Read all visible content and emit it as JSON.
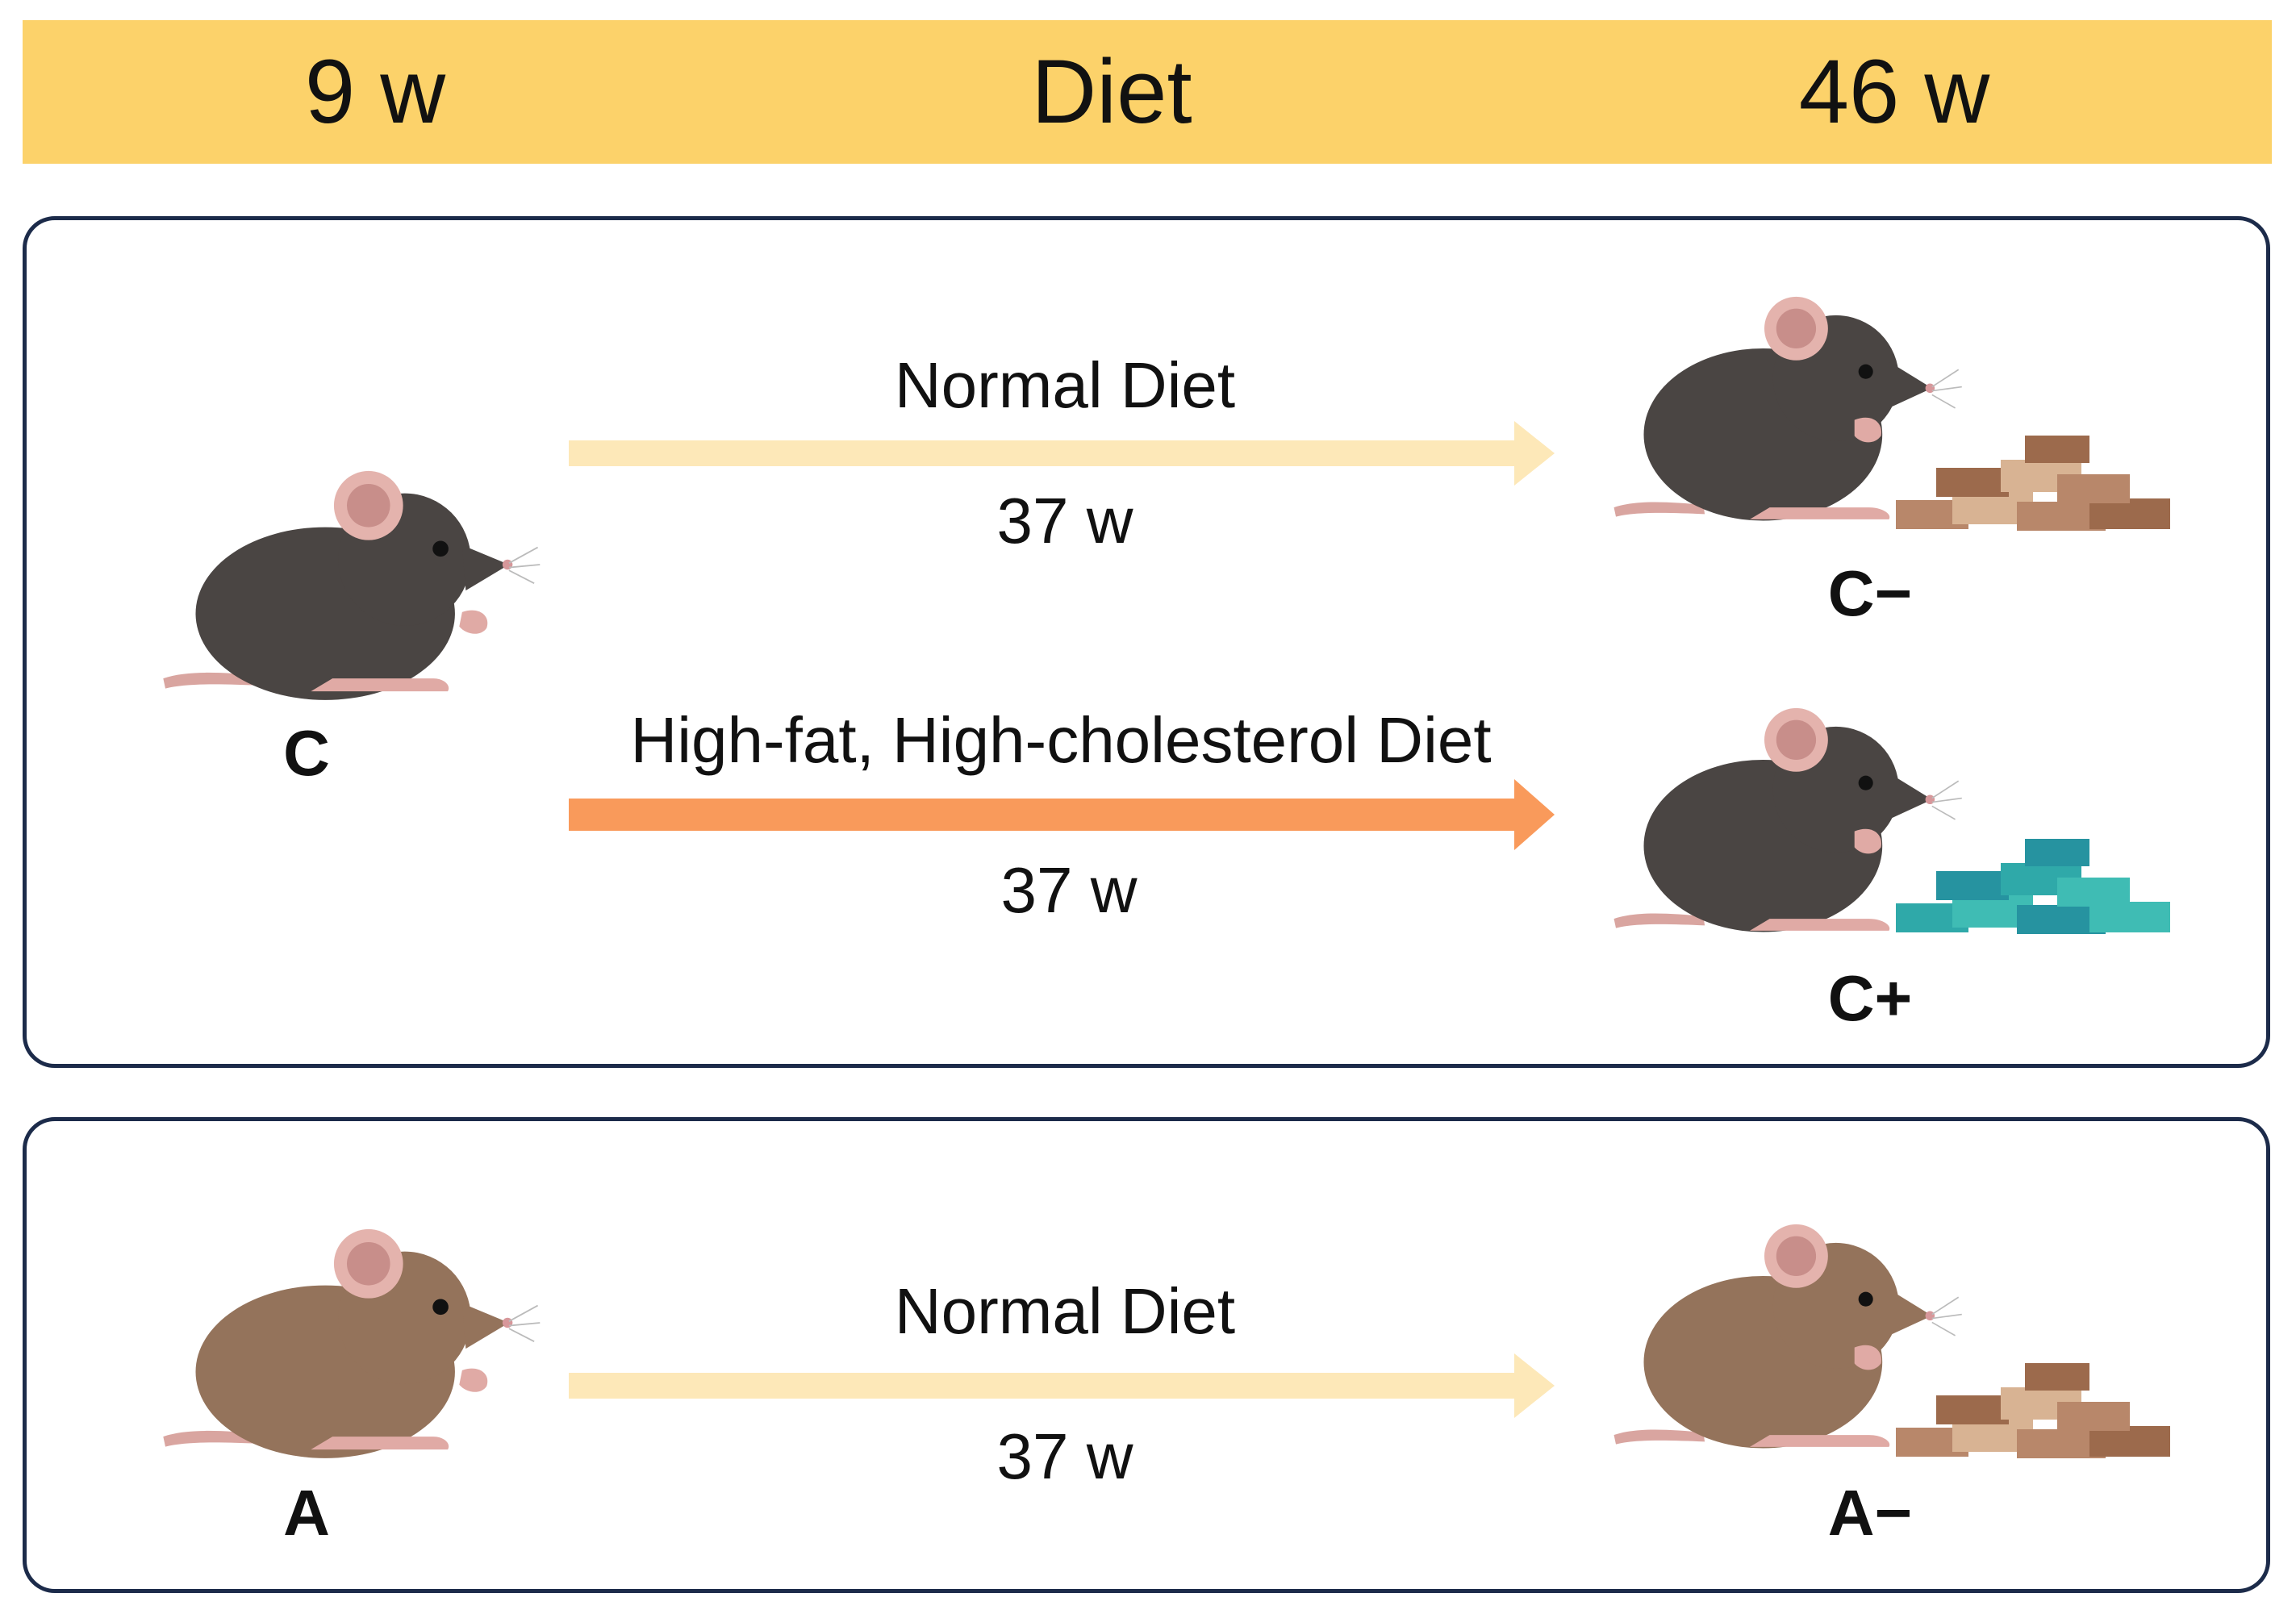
{
  "header": {
    "start_label": "9 w",
    "middle_label": "Diet",
    "end_label": "46 w"
  },
  "panel_c": {
    "start_group": "C",
    "normal": {
      "diet": "Normal Diet",
      "duration": "37 w",
      "result_group": "C−"
    },
    "hfhc": {
      "diet": "High-fat, High-cholesterol Diet",
      "duration": "37 w",
      "result_group": "C+"
    }
  },
  "panel_a": {
    "start_group": "A",
    "normal": {
      "diet": "Normal Diet",
      "duration": "37 w",
      "result_group": "A−"
    }
  },
  "colors": {
    "header": "#fcd26a",
    "normal_arrow": "#fde8b8",
    "hfhc_arrow": "#f99a5b",
    "panel_border": "#1c2b4a",
    "mouse_black": "#4a4543",
    "mouse_agouti": "#94735b",
    "food_normal": "#b8876a",
    "food_hfhc": "#2fa9a9"
  }
}
